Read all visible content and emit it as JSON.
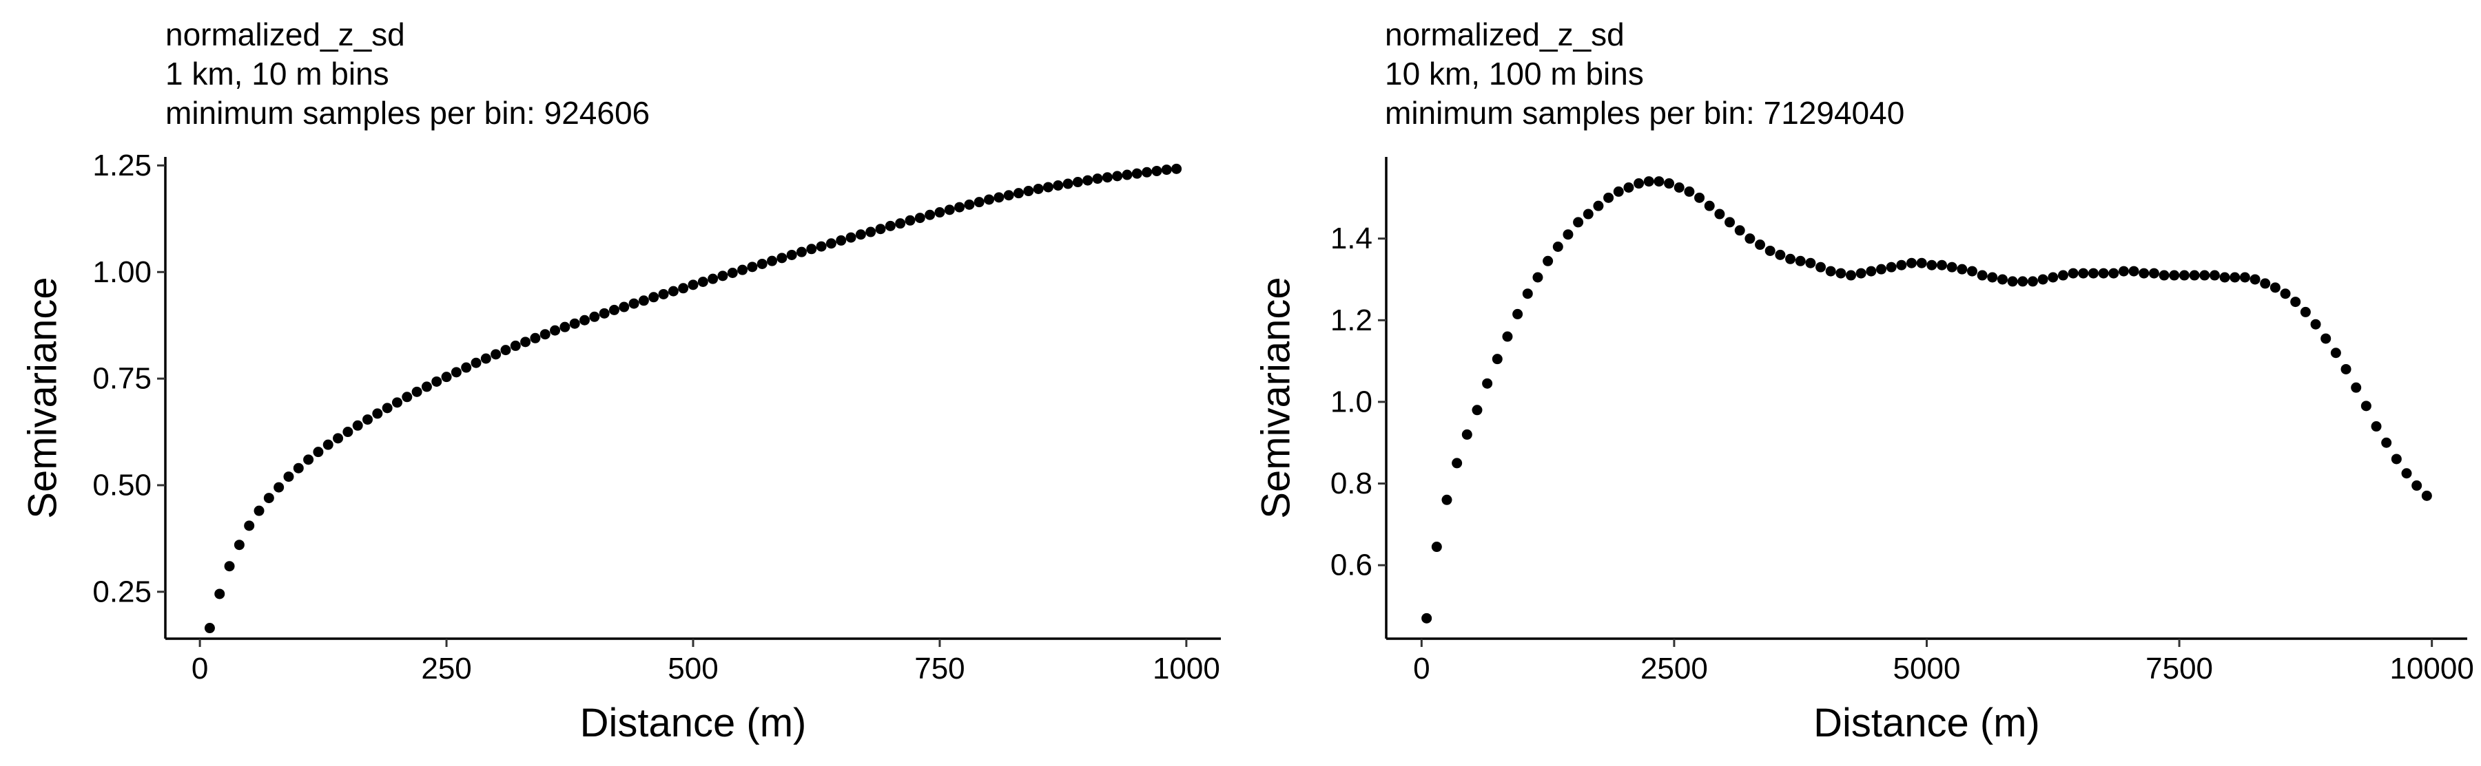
{
  "chart_data": [
    {
      "type": "scatter",
      "title": "normalized_z_sd",
      "subtitle_lines": [
        "1 km, 10 m bins",
        "minimum samples per bin: 924606"
      ],
      "xlabel": "Distance (m)",
      "ylabel": "Semivariance",
      "xlim": [
        -35,
        1035
      ],
      "ylim": [
        0.14,
        1.27
      ],
      "x_ticks": [
        0,
        250,
        500,
        750,
        1000
      ],
      "x_tick_labels": [
        "0",
        "250",
        "500",
        "750",
        "1000"
      ],
      "y_ticks": [
        0.25,
        0.5,
        0.75,
        1.0,
        1.25
      ],
      "y_tick_labels": [
        "0.25",
        "0.50",
        "0.75",
        "1.00",
        "1.25"
      ],
      "grid": false,
      "point_color": "#000000",
      "series": [
        {
          "x": [
            10,
            20,
            30,
            40,
            50,
            60,
            70,
            80,
            90,
            100,
            110,
            120,
            130,
            140,
            150,
            160,
            170,
            180,
            190,
            200,
            210,
            220,
            230,
            240,
            250,
            260,
            270,
            280,
            290,
            300,
            310,
            320,
            330,
            340,
            350,
            360,
            370,
            380,
            390,
            400,
            410,
            420,
            430,
            440,
            450,
            460,
            470,
            480,
            490,
            500,
            510,
            520,
            530,
            540,
            550,
            560,
            570,
            580,
            590,
            600,
            610,
            620,
            630,
            640,
            650,
            660,
            670,
            680,
            690,
            700,
            710,
            720,
            730,
            740,
            750,
            760,
            770,
            780,
            790,
            800,
            810,
            820,
            830,
            840,
            850,
            860,
            870,
            880,
            890,
            900,
            910,
            920,
            930,
            940,
            950,
            960,
            970,
            980,
            990
          ],
          "y": [
            0.165,
            0.245,
            0.31,
            0.36,
            0.405,
            0.44,
            0.47,
            0.495,
            0.52,
            0.54,
            0.56,
            0.578,
            0.595,
            0.61,
            0.625,
            0.64,
            0.654,
            0.668,
            0.681,
            0.694,
            0.707,
            0.719,
            0.731,
            0.743,
            0.754,
            0.765,
            0.776,
            0.787,
            0.797,
            0.807,
            0.817,
            0.827,
            0.836,
            0.845,
            0.854,
            0.863,
            0.871,
            0.879,
            0.887,
            0.895,
            0.903,
            0.911,
            0.918,
            0.926,
            0.933,
            0.941,
            0.948,
            0.955,
            0.962,
            0.97,
            0.977,
            0.984,
            0.991,
            0.998,
            1.005,
            1.012,
            1.019,
            1.026,
            1.033,
            1.04,
            1.047,
            1.054,
            1.06,
            1.067,
            1.074,
            1.081,
            1.088,
            1.094,
            1.101,
            1.108,
            1.114,
            1.121,
            1.127,
            1.134,
            1.14,
            1.146,
            1.152,
            1.158,
            1.164,
            1.17,
            1.175,
            1.18,
            1.185,
            1.19,
            1.195,
            1.199,
            1.203,
            1.207,
            1.211,
            1.215,
            1.219,
            1.222,
            1.225,
            1.228,
            1.231,
            1.234,
            1.237,
            1.24,
            1.242
          ]
        }
      ]
    },
    {
      "type": "scatter",
      "title": "normalized_z_sd",
      "subtitle_lines": [
        "10 km, 100 m bins",
        "minimum samples per bin: 71294040"
      ],
      "xlabel": "Distance (m)",
      "ylabel": "Semivariance",
      "xlim": [
        -350,
        10350
      ],
      "ylim": [
        0.42,
        1.6
      ],
      "x_ticks": [
        0,
        2500,
        5000,
        7500,
        10000
      ],
      "x_tick_labels": [
        "0",
        "2500",
        "5000",
        "7500",
        "10000"
      ],
      "y_ticks": [
        0.6,
        0.8,
        1.0,
        1.2,
        1.4
      ],
      "y_tick_labels": [
        "0.6",
        "0.8",
        "1.0",
        "1.2",
        "1.4"
      ],
      "grid": false,
      "point_color": "#000000",
      "series": [
        {
          "x": [
            50,
            150,
            250,
            350,
            450,
            550,
            650,
            750,
            850,
            950,
            1050,
            1150,
            1250,
            1350,
            1450,
            1550,
            1650,
            1750,
            1850,
            1950,
            2050,
            2150,
            2250,
            2350,
            2450,
            2550,
            2650,
            2750,
            2850,
            2950,
            3050,
            3150,
            3250,
            3350,
            3450,
            3550,
            3650,
            3750,
            3850,
            3950,
            4050,
            4150,
            4250,
            4350,
            4450,
            4550,
            4650,
            4750,
            4850,
            4950,
            5050,
            5150,
            5250,
            5350,
            5450,
            5550,
            5650,
            5750,
            5850,
            5950,
            6050,
            6150,
            6250,
            6350,
            6450,
            6550,
            6650,
            6750,
            6850,
            6950,
            7050,
            7150,
            7250,
            7350,
            7450,
            7550,
            7650,
            7750,
            7850,
            7950,
            8050,
            8150,
            8250,
            8350,
            8450,
            8550,
            8650,
            8750,
            8850,
            8950,
            9050,
            9150,
            9250,
            9350,
            9450,
            9550,
            9650,
            9750,
            9850,
            9950
          ],
          "y": [
            0.47,
            0.645,
            0.76,
            0.85,
            0.92,
            0.98,
            1.045,
            1.105,
            1.16,
            1.215,
            1.265,
            1.305,
            1.345,
            1.38,
            1.41,
            1.44,
            1.46,
            1.48,
            1.5,
            1.515,
            1.525,
            1.535,
            1.54,
            1.54,
            1.535,
            1.525,
            1.515,
            1.5,
            1.48,
            1.46,
            1.44,
            1.42,
            1.4,
            1.385,
            1.37,
            1.36,
            1.35,
            1.345,
            1.34,
            1.33,
            1.32,
            1.315,
            1.31,
            1.315,
            1.32,
            1.325,
            1.33,
            1.335,
            1.34,
            1.34,
            1.335,
            1.335,
            1.33,
            1.325,
            1.32,
            1.31,
            1.305,
            1.3,
            1.295,
            1.295,
            1.295,
            1.3,
            1.305,
            1.31,
            1.315,
            1.315,
            1.315,
            1.315,
            1.315,
            1.32,
            1.32,
            1.315,
            1.315,
            1.31,
            1.31,
            1.31,
            1.31,
            1.31,
            1.31,
            1.305,
            1.305,
            1.305,
            1.3,
            1.29,
            1.28,
            1.265,
            1.245,
            1.22,
            1.19,
            1.155,
            1.12,
            1.08,
            1.035,
            0.99,
            0.94,
            0.9,
            0.86,
            0.825,
            0.795,
            0.77
          ]
        }
      ]
    }
  ]
}
